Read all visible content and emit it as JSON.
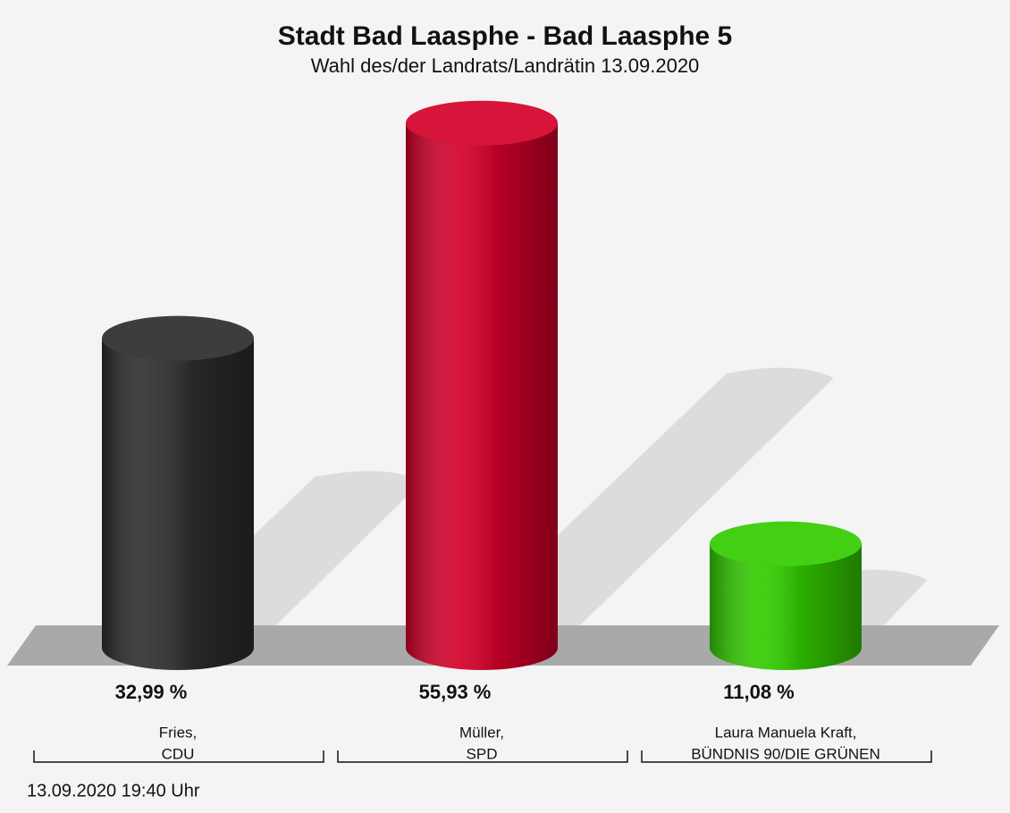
{
  "chart_data": {
    "type": "bar",
    "title": "Stadt Bad Laasphe - Bad Laasphe 5",
    "subtitle": "Wahl des/der Landrats/Landrätin 13.09.2020",
    "categories": [
      [
        "Fries,",
        "CDU"
      ],
      [
        "Müller,",
        "SPD"
      ],
      [
        "Laura Manuela Kraft,",
        "BÜNDNIS 90/DIE GRÜNEN"
      ]
    ],
    "values": [
      32.99,
      55.93,
      11.08
    ],
    "value_labels": [
      "32,99 %",
      "55,93 %",
      "11,08 %"
    ],
    "colors": [
      "#2d2d2d",
      "#d4002a",
      "#33cc00"
    ],
    "footer": "13.09.2020 19:40 Uhr"
  }
}
